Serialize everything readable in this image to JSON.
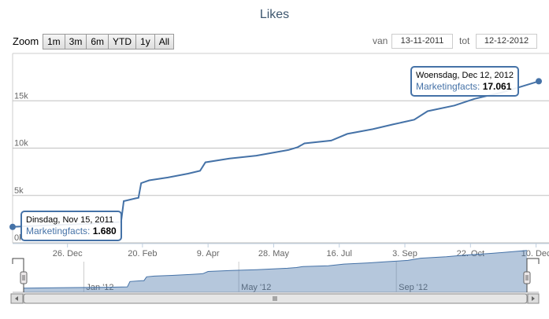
{
  "title": "Likes",
  "range_selector": {
    "zoom_label": "Zoom",
    "buttons": [
      "1m",
      "3m",
      "6m",
      "YTD",
      "1y",
      "All"
    ],
    "from_label": "van",
    "from_value": "13-11-2011",
    "to_label": "tot",
    "to_value": "12-12-2012"
  },
  "chart_data": {
    "type": "line",
    "title": "Likes",
    "series": [
      {
        "name": "Marketingfacts",
        "color": "#4572a7",
        "points": [
          [
            "2011-11-15",
            1680
          ],
          [
            "2011-12-10",
            1850
          ],
          [
            "2012-01-10",
            2000
          ],
          [
            "2012-02-04",
            2200
          ],
          [
            "2012-02-06",
            4400
          ],
          [
            "2012-02-15",
            4700
          ],
          [
            "2012-02-17",
            4750
          ],
          [
            "2012-02-19",
            6300
          ],
          [
            "2012-02-25",
            6600
          ],
          [
            "2012-03-10",
            6900
          ],
          [
            "2012-03-25",
            7300
          ],
          [
            "2012-04-03",
            7600
          ],
          [
            "2012-04-07",
            8500
          ],
          [
            "2012-04-25",
            8900
          ],
          [
            "2012-05-15",
            9200
          ],
          [
            "2012-06-08",
            9800
          ],
          [
            "2012-06-15",
            10100
          ],
          [
            "2012-06-20",
            10500
          ],
          [
            "2012-07-10",
            10800
          ],
          [
            "2012-07-22",
            11500
          ],
          [
            "2012-08-10",
            12000
          ],
          [
            "2012-08-25",
            12500
          ],
          [
            "2012-09-10",
            13000
          ],
          [
            "2012-09-20",
            13900
          ],
          [
            "2012-10-10",
            14500
          ],
          [
            "2012-10-25",
            15200
          ],
          [
            "2012-11-15",
            15900
          ],
          [
            "2012-12-12",
            17061
          ]
        ]
      }
    ],
    "yaxis": {
      "ticks": [
        0,
        5000,
        10000,
        15000
      ],
      "tick_labels": [
        "0k",
        "5k",
        "10k",
        "15k"
      ],
      "ylim": [
        0,
        20000
      ]
    },
    "xaxis": {
      "range": [
        "2011-11-15",
        "2012-12-12"
      ],
      "ticks": [
        "2011-12-26",
        "2012-02-20",
        "2012-04-09",
        "2012-05-28",
        "2012-07-16",
        "2012-09-03",
        "2012-10-22",
        "2012-12-10"
      ],
      "tick_labels": [
        "26. Dec",
        "20. Feb",
        "9. Apr",
        "28. May",
        "16. Jul",
        "3. Sep",
        "22. Oct",
        "10. Dec"
      ]
    },
    "navigator": {
      "ticks": [
        "2012-01-01",
        "2012-05-01",
        "2012-09-01"
      ],
      "tick_labels": [
        "Jan '12",
        "May '12",
        "Sep '12"
      ]
    },
    "tooltips": [
      {
        "date": "Dinsdag, Nov 15, 2011",
        "series": "Marketingfacts",
        "value": "1.680"
      },
      {
        "date": "Woensdag, Dec 12, 2012",
        "series": "Marketingfacts",
        "value": "17.061"
      }
    ]
  }
}
